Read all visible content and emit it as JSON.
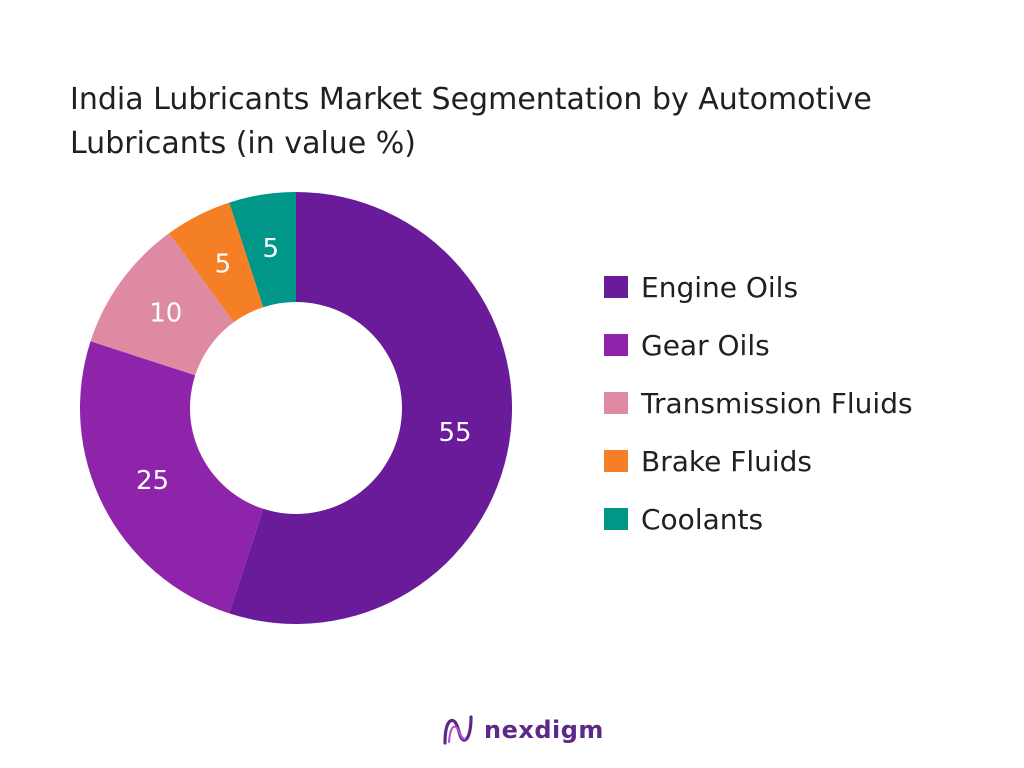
{
  "chart_data": {
    "type": "pie",
    "title": "India Lubricants Market Segmentation by Automotive Lubricants (in value %)",
    "categories": [
      "Engine Oils",
      "Gear Oils",
      "Transmission Fluids",
      "Brake Fluids",
      "Coolants"
    ],
    "values": [
      55,
      25,
      10,
      5,
      5
    ],
    "colors": [
      "#6a1b9a",
      "#8e24aa",
      "#df8aa3",
      "#f57f25",
      "#009688"
    ],
    "donut": true,
    "legend_position": "right"
  },
  "brand": {
    "name": "nexdigm",
    "icon": "nexdigm-logo-icon"
  }
}
